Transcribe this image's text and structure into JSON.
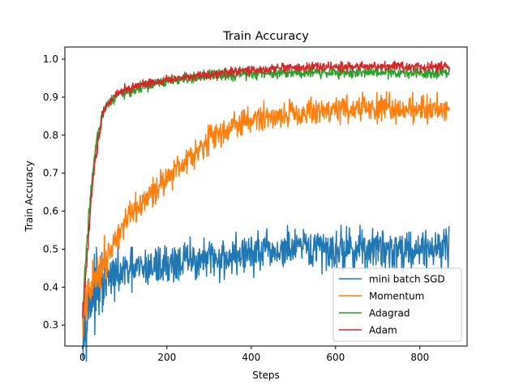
{
  "chart_data": {
    "type": "line",
    "title": "Train Accuracy",
    "xlabel": "Steps",
    "ylabel": "Train Accuracy",
    "xlim": [
      -42,
      912
    ],
    "ylim": [
      0.245,
      1.032
    ],
    "x_ticks": [
      0,
      200,
      400,
      600,
      800
    ],
    "y_ticks": [
      0.3,
      0.4,
      0.5,
      0.6,
      0.7,
      0.8,
      0.9,
      1.0
    ],
    "grid": false,
    "legend": "lower-right",
    "x_max": 870,
    "series": [
      {
        "name": "mini batch SGD",
        "color": "#1f77b4",
        "x": [
          0,
          20,
          40,
          60,
          80,
          100,
          150,
          200,
          250,
          300,
          350,
          400,
          450,
          500,
          550,
          600,
          650,
          700,
          750,
          800,
          870
        ],
        "values": [
          0.3,
          0.37,
          0.4,
          0.42,
          0.43,
          0.44,
          0.45,
          0.46,
          0.47,
          0.47,
          0.48,
          0.49,
          0.49,
          0.5,
          0.5,
          0.5,
          0.5,
          0.5,
          0.5,
          0.5,
          0.51
        ]
      },
      {
        "name": "Momentum",
        "color": "#ff7f0e",
        "x": [
          0,
          20,
          40,
          60,
          80,
          100,
          150,
          200,
          250,
          300,
          350,
          400,
          450,
          500,
          550,
          600,
          650,
          700,
          750,
          800,
          870
        ],
        "values": [
          0.32,
          0.4,
          0.45,
          0.49,
          0.53,
          0.57,
          0.63,
          0.69,
          0.74,
          0.79,
          0.82,
          0.84,
          0.85,
          0.86,
          0.86,
          0.87,
          0.87,
          0.87,
          0.87,
          0.87,
          0.87
        ]
      },
      {
        "name": "Adagrad",
        "color": "#2ca02c",
        "x": [
          0,
          10,
          20,
          30,
          40,
          50,
          60,
          80,
          100,
          150,
          200,
          250,
          300,
          350,
          400,
          450,
          500,
          550,
          600,
          650,
          700,
          750,
          800,
          870
        ],
        "values": [
          0.32,
          0.52,
          0.66,
          0.76,
          0.82,
          0.86,
          0.88,
          0.9,
          0.91,
          0.93,
          0.94,
          0.95,
          0.955,
          0.96,
          0.96,
          0.965,
          0.965,
          0.965,
          0.965,
          0.965,
          0.965,
          0.965,
          0.965,
          0.965
        ]
      },
      {
        "name": "Adam",
        "color": "#d62728",
        "x": [
          0,
          10,
          20,
          30,
          40,
          50,
          60,
          80,
          100,
          150,
          200,
          250,
          300,
          350,
          400,
          450,
          500,
          550,
          600,
          650,
          700,
          750,
          800,
          870
        ],
        "values": [
          0.32,
          0.47,
          0.63,
          0.74,
          0.81,
          0.86,
          0.88,
          0.91,
          0.92,
          0.935,
          0.945,
          0.955,
          0.96,
          0.965,
          0.97,
          0.975,
          0.975,
          0.98,
          0.98,
          0.98,
          0.98,
          0.98,
          0.98,
          0.98
        ]
      }
    ]
  }
}
